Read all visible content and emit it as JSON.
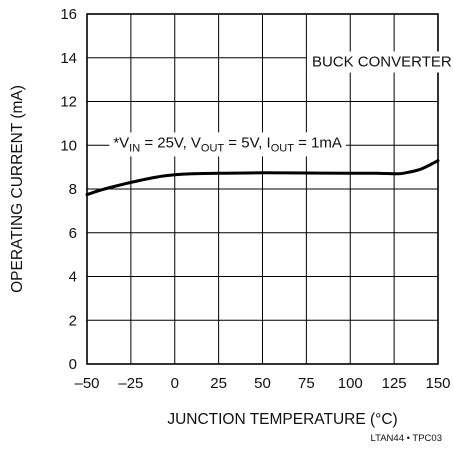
{
  "chart_data": {
    "type": "line",
    "title": "",
    "xlabel": "JUNCTION TEMPERATURE (°C)",
    "ylabel": "OPERATING CURRENT (mA)",
    "xlim": [
      -50,
      150
    ],
    "ylim": [
      0,
      16
    ],
    "x_ticks": [
      -50,
      -25,
      0,
      25,
      50,
      75,
      100,
      125,
      150
    ],
    "x_tick_labels": [
      "–50",
      "–25",
      "0",
      "25",
      "50",
      "75",
      "100",
      "125",
      "150"
    ],
    "y_ticks": [
      0,
      2,
      4,
      6,
      8,
      10,
      12,
      14,
      16
    ],
    "y_tick_labels": [
      "0",
      "2",
      "4",
      "6",
      "8",
      "10",
      "12",
      "14",
      "16"
    ],
    "grid": true,
    "series": [
      {
        "x": [
          -50,
          -40,
          -25,
          -10,
          0,
          10,
          25,
          50,
          75,
          100,
          115,
          125,
          130,
          140,
          150
        ],
        "y": [
          7.75,
          8.0,
          8.3,
          8.55,
          8.65,
          8.7,
          8.72,
          8.74,
          8.73,
          8.72,
          8.72,
          8.7,
          8.72,
          8.9,
          9.3
        ]
      }
    ],
    "annotations": {
      "box_label": "BUCK CONVERTER",
      "condition_parts": [
        "*V",
        "IN",
        " = 25V, V",
        "OUT",
        " = 5V, I",
        "OUT",
        "  = 1mA"
      ]
    },
    "footer": "LTAN44 • TPC03"
  }
}
